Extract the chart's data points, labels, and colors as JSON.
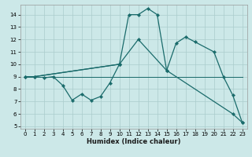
{
  "xlabel": "Humidex (Indice chaleur)",
  "bg_color": "#cce8e8",
  "line_color": "#1a6b6b",
  "grid_color": "#aacccc",
  "xlim": [
    -0.5,
    23.5
  ],
  "ylim": [
    4.8,
    14.8
  ],
  "yticks": [
    5,
    6,
    7,
    8,
    9,
    10,
    11,
    12,
    13,
    14
  ],
  "xticks": [
    0,
    1,
    2,
    3,
    4,
    5,
    6,
    7,
    8,
    9,
    10,
    11,
    12,
    13,
    14,
    15,
    16,
    17,
    18,
    19,
    20,
    21,
    22,
    23
  ],
  "line1_x": [
    0,
    1,
    2,
    3,
    4,
    5,
    6,
    7,
    8,
    9,
    10,
    11,
    12,
    13,
    14,
    15,
    16,
    17,
    18,
    19,
    20,
    21,
    22,
    23
  ],
  "line1_y": [
    9,
    9,
    9,
    9,
    9,
    9,
    9,
    9,
    9,
    9,
    9,
    9,
    9,
    9,
    9,
    9,
    9,
    9,
    9,
    9,
    9,
    9,
    9,
    9
  ],
  "line2_x": [
    0,
    1,
    10,
    11,
    12,
    13,
    14,
    15,
    22,
    23
  ],
  "line2_y": [
    9,
    9,
    10,
    14,
    14,
    14.5,
    14,
    9.5,
    6.0,
    5.3
  ],
  "line3_x": [
    0,
    1,
    10,
    12,
    15,
    16,
    17,
    18,
    20,
    21,
    22,
    23
  ],
  "line3_y": [
    9,
    9,
    10,
    12,
    9.5,
    11.7,
    12.2,
    11.8,
    11.0,
    9.0,
    7.5,
    5.3
  ],
  "line4_x": [
    2,
    3,
    4,
    5,
    6,
    7,
    8,
    9,
    10
  ],
  "line4_y": [
    8.9,
    9.0,
    8.3,
    7.1,
    7.6,
    7.1,
    7.4,
    8.5,
    10.0
  ],
  "line5_x": [
    0,
    23
  ],
  "line5_y": [
    9.0,
    9.0
  ]
}
